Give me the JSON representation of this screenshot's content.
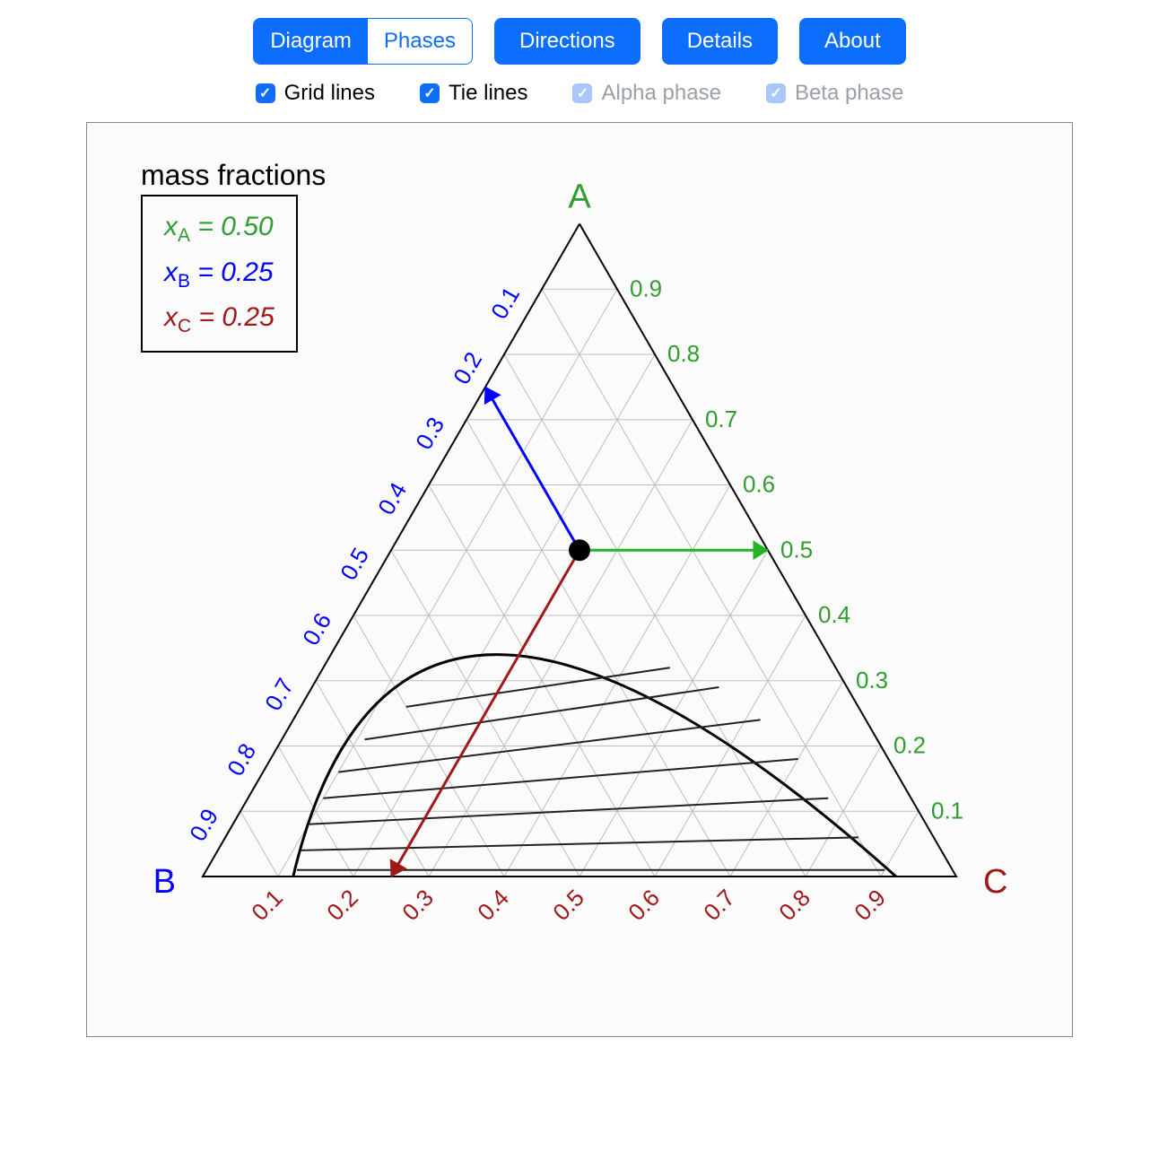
{
  "tabs": {
    "diagram": "Diagram",
    "phases": "Phases",
    "active": "diagram"
  },
  "buttons": {
    "directions": "Directions",
    "details": "Details",
    "about": "About"
  },
  "checks": {
    "grid": {
      "label": "Grid lines",
      "checked": true,
      "enabled": true
    },
    "tie": {
      "label": "Tie lines",
      "checked": true,
      "enabled": true
    },
    "alpha": {
      "label": "Alpha phase",
      "checked": true,
      "enabled": false
    },
    "beta": {
      "label": "Beta phase",
      "checked": true,
      "enabled": false
    }
  },
  "mass_title": "mass fractions",
  "mass_fractions": {
    "A": {
      "label": "x",
      "sub": "A",
      "value": "0.50",
      "color": "#2e9e2e"
    },
    "B": {
      "label": "x",
      "sub": "B",
      "value": "0.25",
      "color": "#0000ff"
    },
    "C": {
      "label": "x",
      "sub": "C",
      "value": "0.25",
      "color": "#a01818"
    }
  },
  "colors": {
    "btn": "#0d6efd",
    "grid": "#bdbdbd",
    "edge": "#000000",
    "tie": "#222222",
    "vertexA": "#2e9e2e",
    "vertexB": "#0000ff",
    "vertexC": "#a01818",
    "arrowA": "#22b422",
    "arrowB": "#0000ff",
    "arrowC": "#a01818",
    "point": "#000000",
    "frame_bg": "#fbfbfb"
  },
  "vertices": {
    "A": "A",
    "B": "B",
    "C": "C"
  },
  "ticks": [
    "0.1",
    "0.2",
    "0.3",
    "0.4",
    "0.5",
    "0.6",
    "0.7",
    "0.8",
    "0.9"
  ],
  "axisA_ticks_reversed": [
    "0.9",
    "0.8",
    "0.7",
    "0.6",
    "0.5",
    "0.4",
    "0.3",
    "0.2",
    "0.1"
  ],
  "triangle_geom": {
    "side": 840,
    "height": 727.46,
    "B": [
      80,
      790
    ],
    "C": [
      920,
      790
    ],
    "A": [
      500,
      62.54
    ],
    "grid_divisions": 10
  },
  "composition_point": {
    "xA": 0.5,
    "xB": 0.25,
    "xC": 0.25
  },
  "phase_envelope": {
    "left_end": {
      "xB": 0.88,
      "xC": 0.12,
      "xA": 0.0
    },
    "right_end": {
      "xB": 0.08,
      "xC": 0.92,
      "xA": 0.0
    },
    "apex": {
      "xB": 0.44,
      "xC": 0.22,
      "xA": 0.34
    },
    "stroke_width": 3
  },
  "tie_lines": [
    {
      "l": {
        "b": 0.87,
        "c": 0.12,
        "a": 0.01
      },
      "r": {
        "b": 0.09,
        "c": 0.9,
        "a": 0.01
      }
    },
    {
      "l": {
        "b": 0.85,
        "c": 0.11,
        "a": 0.04
      },
      "r": {
        "b": 0.1,
        "c": 0.84,
        "a": 0.06
      }
    },
    {
      "l": {
        "b": 0.82,
        "c": 0.1,
        "a": 0.08
      },
      "r": {
        "b": 0.11,
        "c": 0.77,
        "a": 0.12
      }
    },
    {
      "l": {
        "b": 0.78,
        "c": 0.1,
        "a": 0.12
      },
      "r": {
        "b": 0.12,
        "c": 0.7,
        "a": 0.18
      }
    },
    {
      "l": {
        "b": 0.74,
        "c": 0.1,
        "a": 0.16
      },
      "r": {
        "b": 0.14,
        "c": 0.62,
        "a": 0.24
      }
    },
    {
      "l": {
        "b": 0.68,
        "c": 0.11,
        "a": 0.21
      },
      "r": {
        "b": 0.17,
        "c": 0.54,
        "a": 0.29
      }
    },
    {
      "l": {
        "b": 0.6,
        "c": 0.14,
        "a": 0.26
      },
      "r": {
        "b": 0.22,
        "c": 0.46,
        "a": 0.32
      }
    }
  ],
  "tie_line_width": 2,
  "point_radius": 12,
  "arrow_width": 3
}
